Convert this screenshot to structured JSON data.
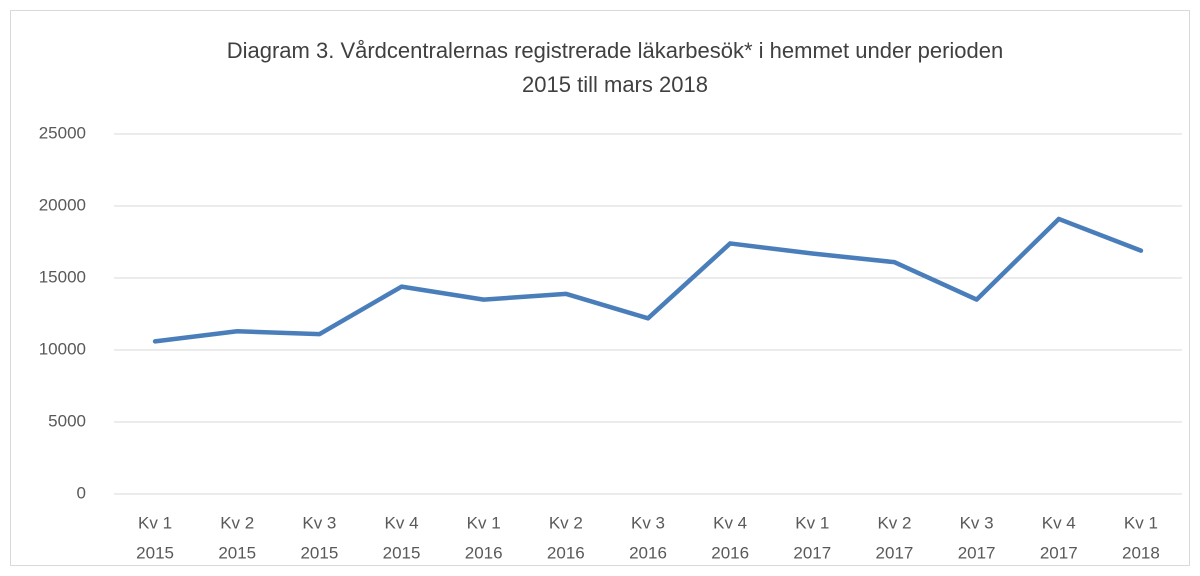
{
  "chart_data": {
    "type": "line",
    "title": [
      "Diagram 3. Vårdcentralernas registrerade läkarbesök* i hemmet under perioden",
      "2015 till mars 2018"
    ],
    "categories": [
      [
        "Kv 1",
        "2015"
      ],
      [
        "Kv 2",
        "2015"
      ],
      [
        "Kv 3",
        "2015"
      ],
      [
        "Kv 4",
        "2015"
      ],
      [
        "Kv 1",
        "2016"
      ],
      [
        "Kv 2",
        "2016"
      ],
      [
        "Kv 3",
        "2016"
      ],
      [
        "Kv 4",
        "2016"
      ],
      [
        "Kv 1",
        "2017"
      ],
      [
        "Kv 2",
        "2017"
      ],
      [
        "Kv 3",
        "2017"
      ],
      [
        "Kv 4",
        "2017"
      ],
      [
        "Kv 1",
        "2018"
      ]
    ],
    "values": [
      10600,
      11300,
      11100,
      14400,
      13500,
      13900,
      12200,
      17400,
      16700,
      16100,
      13500,
      19100,
      16900
    ],
    "color": "#4a7ebb",
    "ylim": [
      0,
      25000
    ],
    "yticks": [
      0,
      5000,
      10000,
      15000,
      20000,
      25000
    ],
    "grid": true
  }
}
